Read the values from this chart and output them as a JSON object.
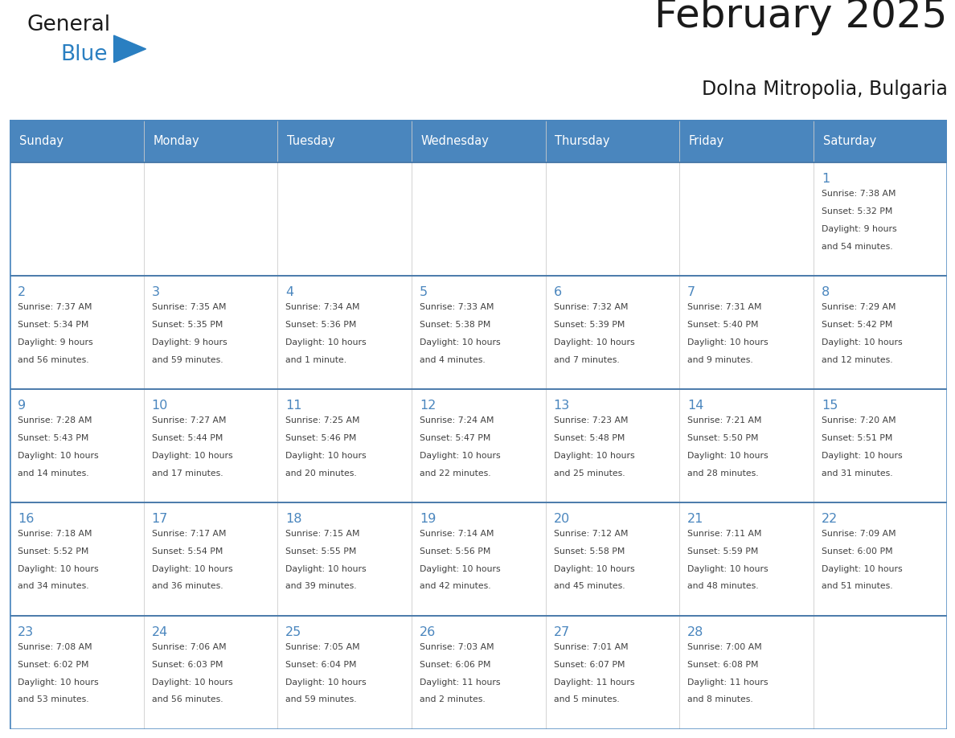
{
  "title": "February 2025",
  "subtitle": "Dolna Mitropolia, Bulgaria",
  "header_color": "#4a86be",
  "header_text_color": "#ffffff",
  "border_color": "#4a86be",
  "row_border_color": "#4a7aaa",
  "day_headers": [
    "Sunday",
    "Monday",
    "Tuesday",
    "Wednesday",
    "Thursday",
    "Friday",
    "Saturday"
  ],
  "background_color": "#ffffff",
  "cell_bg_color": "#f9f9f9",
  "title_color": "#1a1a1a",
  "subtitle_color": "#1a1a1a",
  "day_number_color": "#4a86be",
  "text_color": "#404040",
  "calendar_data": [
    [
      null,
      null,
      null,
      null,
      null,
      null,
      {
        "day": "1",
        "sunrise": "7:38 AM",
        "sunset": "5:32 PM",
        "daylight": "9 hours",
        "daylight2": "and 54 minutes."
      }
    ],
    [
      {
        "day": "2",
        "sunrise": "7:37 AM",
        "sunset": "5:34 PM",
        "daylight": "9 hours",
        "daylight2": "and 56 minutes."
      },
      {
        "day": "3",
        "sunrise": "7:35 AM",
        "sunset": "5:35 PM",
        "daylight": "9 hours",
        "daylight2": "and 59 minutes."
      },
      {
        "day": "4",
        "sunrise": "7:34 AM",
        "sunset": "5:36 PM",
        "daylight": "10 hours",
        "daylight2": "and 1 minute."
      },
      {
        "day": "5",
        "sunrise": "7:33 AM",
        "sunset": "5:38 PM",
        "daylight": "10 hours",
        "daylight2": "and 4 minutes."
      },
      {
        "day": "6",
        "sunrise": "7:32 AM",
        "sunset": "5:39 PM",
        "daylight": "10 hours",
        "daylight2": "and 7 minutes."
      },
      {
        "day": "7",
        "sunrise": "7:31 AM",
        "sunset": "5:40 PM",
        "daylight": "10 hours",
        "daylight2": "and 9 minutes."
      },
      {
        "day": "8",
        "sunrise": "7:29 AM",
        "sunset": "5:42 PM",
        "daylight": "10 hours",
        "daylight2": "and 12 minutes."
      }
    ],
    [
      {
        "day": "9",
        "sunrise": "7:28 AM",
        "sunset": "5:43 PM",
        "daylight": "10 hours",
        "daylight2": "and 14 minutes."
      },
      {
        "day": "10",
        "sunrise": "7:27 AM",
        "sunset": "5:44 PM",
        "daylight": "10 hours",
        "daylight2": "and 17 minutes."
      },
      {
        "day": "11",
        "sunrise": "7:25 AM",
        "sunset": "5:46 PM",
        "daylight": "10 hours",
        "daylight2": "and 20 minutes."
      },
      {
        "day": "12",
        "sunrise": "7:24 AM",
        "sunset": "5:47 PM",
        "daylight": "10 hours",
        "daylight2": "and 22 minutes."
      },
      {
        "day": "13",
        "sunrise": "7:23 AM",
        "sunset": "5:48 PM",
        "daylight": "10 hours",
        "daylight2": "and 25 minutes."
      },
      {
        "day": "14",
        "sunrise": "7:21 AM",
        "sunset": "5:50 PM",
        "daylight": "10 hours",
        "daylight2": "and 28 minutes."
      },
      {
        "day": "15",
        "sunrise": "7:20 AM",
        "sunset": "5:51 PM",
        "daylight": "10 hours",
        "daylight2": "and 31 minutes."
      }
    ],
    [
      {
        "day": "16",
        "sunrise": "7:18 AM",
        "sunset": "5:52 PM",
        "daylight": "10 hours",
        "daylight2": "and 34 minutes."
      },
      {
        "day": "17",
        "sunrise": "7:17 AM",
        "sunset": "5:54 PM",
        "daylight": "10 hours",
        "daylight2": "and 36 minutes."
      },
      {
        "day": "18",
        "sunrise": "7:15 AM",
        "sunset": "5:55 PM",
        "daylight": "10 hours",
        "daylight2": "and 39 minutes."
      },
      {
        "day": "19",
        "sunrise": "7:14 AM",
        "sunset": "5:56 PM",
        "daylight": "10 hours",
        "daylight2": "and 42 minutes."
      },
      {
        "day": "20",
        "sunrise": "7:12 AM",
        "sunset": "5:58 PM",
        "daylight": "10 hours",
        "daylight2": "and 45 minutes."
      },
      {
        "day": "21",
        "sunrise": "7:11 AM",
        "sunset": "5:59 PM",
        "daylight": "10 hours",
        "daylight2": "and 48 minutes."
      },
      {
        "day": "22",
        "sunrise": "7:09 AM",
        "sunset": "6:00 PM",
        "daylight": "10 hours",
        "daylight2": "and 51 minutes."
      }
    ],
    [
      {
        "day": "23",
        "sunrise": "7:08 AM",
        "sunset": "6:02 PM",
        "daylight": "10 hours",
        "daylight2": "and 53 minutes."
      },
      {
        "day": "24",
        "sunrise": "7:06 AM",
        "sunset": "6:03 PM",
        "daylight": "10 hours",
        "daylight2": "and 56 minutes."
      },
      {
        "day": "25",
        "sunrise": "7:05 AM",
        "sunset": "6:04 PM",
        "daylight": "10 hours",
        "daylight2": "and 59 minutes."
      },
      {
        "day": "26",
        "sunrise": "7:03 AM",
        "sunset": "6:06 PM",
        "daylight": "11 hours",
        "daylight2": "and 2 minutes."
      },
      {
        "day": "27",
        "sunrise": "7:01 AM",
        "sunset": "6:07 PM",
        "daylight": "11 hours",
        "daylight2": "and 5 minutes."
      },
      {
        "day": "28",
        "sunrise": "7:00 AM",
        "sunset": "6:08 PM",
        "daylight": "11 hours",
        "daylight2": "and 8 minutes."
      },
      null
    ]
  ],
  "logo_color_general": "#1a1a1a",
  "logo_color_blue": "#2a7fc1",
  "logo_triangle_color": "#2a7fc1"
}
